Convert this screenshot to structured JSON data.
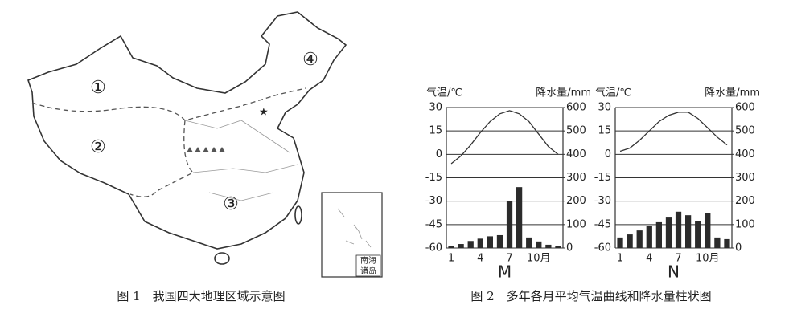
{
  "figure1": {
    "caption": "图 1　我国四大地理区域示意图",
    "regions": [
      "①",
      "②",
      "③",
      "④"
    ],
    "inset_label": [
      "南海",
      "诸岛"
    ]
  },
  "figure2": {
    "caption": "图 2　多年各月平均气温曲线和降水量柱状图"
  },
  "chart_data": [
    {
      "type": "combo",
      "xlabel": "M",
      "ylabel": "气温/℃",
      "y2label": "降水量/mm",
      "categories": [
        "1",
        null,
        null,
        "4",
        null,
        null,
        "7",
        null,
        null,
        "10月",
        null,
        null
      ],
      "ylim": [
        -60,
        30
      ],
      "yticks": [
        -60,
        -45,
        -30,
        -15,
        0,
        15,
        30
      ],
      "y2lim": [
        0,
        600
      ],
      "y2ticks": [
        0,
        100,
        200,
        300,
        400,
        500,
        600
      ],
      "grid": true,
      "series": [
        {
          "type": "line",
          "color": "#333333",
          "values": [
            -6,
            -1,
            6,
            14,
            21,
            26,
            28,
            26,
            21,
            13,
            5,
            0
          ]
        },
        {
          "type": "bar",
          "axis": "y2",
          "color": "#2b2b2b",
          "values": [
            10,
            17,
            30,
            40,
            50,
            55,
            200,
            260,
            45,
            28,
            14,
            7
          ]
        }
      ]
    },
    {
      "type": "combo",
      "xlabel": "N",
      "ylabel": "气温/℃",
      "y2label": "降水量/mm",
      "categories": [
        "1",
        null,
        null,
        "4",
        null,
        null,
        "7",
        null,
        null,
        "10月",
        null,
        null
      ],
      "ylim": [
        -60,
        30
      ],
      "yticks": [
        -60,
        -45,
        -30,
        -15,
        0,
        15,
        30
      ],
      "y2lim": [
        0,
        600
      ],
      "y2ticks": [
        0,
        100,
        200,
        300,
        400,
        500,
        600
      ],
      "grid": true,
      "series": [
        {
          "type": "line",
          "color": "#333333",
          "values": [
            2,
            4,
            9,
            15,
            21,
            25,
            27,
            27,
            23,
            17,
            11,
            6
          ]
        },
        {
          "type": "bar",
          "axis": "y2",
          "color": "#2b2b2b",
          "values": [
            45,
            58,
            75,
            95,
            110,
            130,
            155,
            140,
            115,
            150,
            45,
            38
          ]
        }
      ]
    }
  ]
}
